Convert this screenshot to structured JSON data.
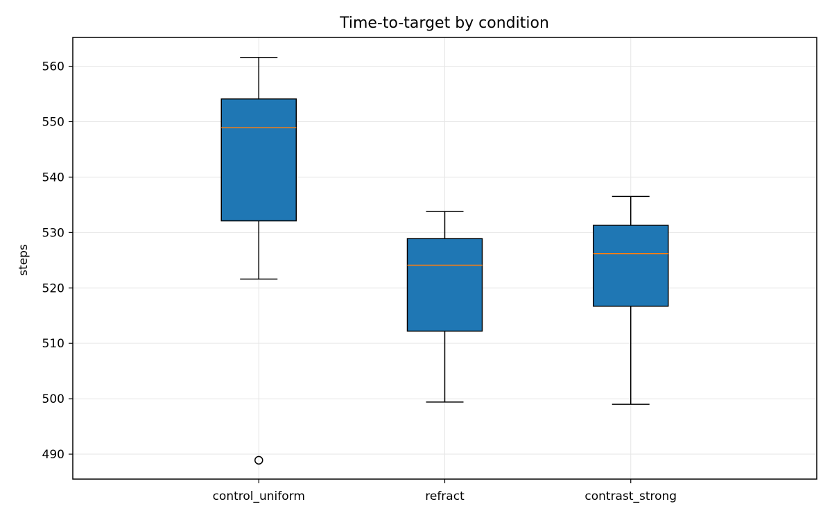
{
  "chart_data": {
    "type": "box",
    "title": "Time-to-target by condition",
    "xlabel": "",
    "ylabel": "steps",
    "categories": [
      "control_uniform",
      "refract",
      "contrast_strong"
    ],
    "ylim": [
      485.5,
      565.2
    ],
    "yticks": [
      490,
      500,
      510,
      520,
      530,
      540,
      550,
      560
    ],
    "grid": true,
    "legend": "none",
    "colors": {
      "box_fill": "#1f77b4",
      "median": "#ff7f0e",
      "edge": "#000000",
      "grid": "#e6e6e6"
    },
    "boxes": [
      {
        "category": "control_uniform",
        "whisker_low": 521.6,
        "q1": 532.1,
        "median": 548.9,
        "q3": 554.1,
        "whisker_high": 561.6,
        "outliers": [
          488.9
        ]
      },
      {
        "category": "refract",
        "whisker_low": 499.4,
        "q1": 512.2,
        "median": 524.1,
        "q3": 528.9,
        "whisker_high": 533.8,
        "outliers": []
      },
      {
        "category": "contrast_strong",
        "whisker_low": 499.0,
        "q1": 516.7,
        "median": 526.2,
        "q3": 531.3,
        "whisker_high": 536.5,
        "outliers": []
      }
    ]
  }
}
